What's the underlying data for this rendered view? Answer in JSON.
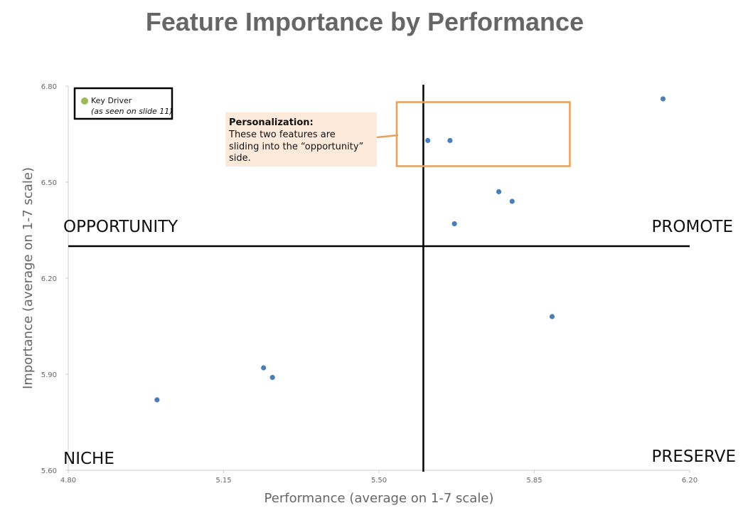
{
  "chart_data": {
    "type": "scatter",
    "title": "Feature Importance by Performance",
    "xlabel": "Performance (average on 1-7 scale)",
    "ylabel": "Importance (average on 1-7 scale)",
    "xlim": [
      4.8,
      6.2
    ],
    "ylim": [
      5.6,
      6.8
    ],
    "x_ticks": [
      "4.80",
      "5.15",
      "5.50",
      "5.85",
      "6.20"
    ],
    "y_ticks": [
      "5.60",
      "5.90",
      "6.20",
      "6.50",
      "6.80"
    ],
    "grid": false,
    "point_color": "#4a7ebb",
    "points": [
      {
        "x": 5.0,
        "y": 5.82
      },
      {
        "x": 5.24,
        "y": 5.92
      },
      {
        "x": 5.26,
        "y": 5.89
      },
      {
        "x": 5.61,
        "y": 6.63
      },
      {
        "x": 5.66,
        "y": 6.63
      },
      {
        "x": 5.67,
        "y": 6.37
      },
      {
        "x": 5.77,
        "y": 6.47
      },
      {
        "x": 5.8,
        "y": 6.44
      },
      {
        "x": 5.89,
        "y": 6.08
      },
      {
        "x": 6.14,
        "y": 6.76
      }
    ],
    "divider_x": 5.6,
    "divider_y": 6.3,
    "quadrant_labels": {
      "top_left": "OPPORTUNITY",
      "top_right": "PROMOTE",
      "bottom_left": "NICHE",
      "bottom_right": "PRESERVE"
    },
    "legend": {
      "position": "top-left",
      "label": "Key Driver",
      "note": "(as seen on slide 11)",
      "color": "#9bbb59"
    },
    "annotation": {
      "heading": "Personalization:",
      "lines": [
        "These two features are",
        "sliding into the “opportunity”",
        "side."
      ],
      "box_color": "#fdeada",
      "highlight_color": "#e8a158",
      "highlight_xlim": [
        5.54,
        5.93
      ],
      "highlight_ylim": [
        6.55,
        6.75
      ]
    }
  }
}
